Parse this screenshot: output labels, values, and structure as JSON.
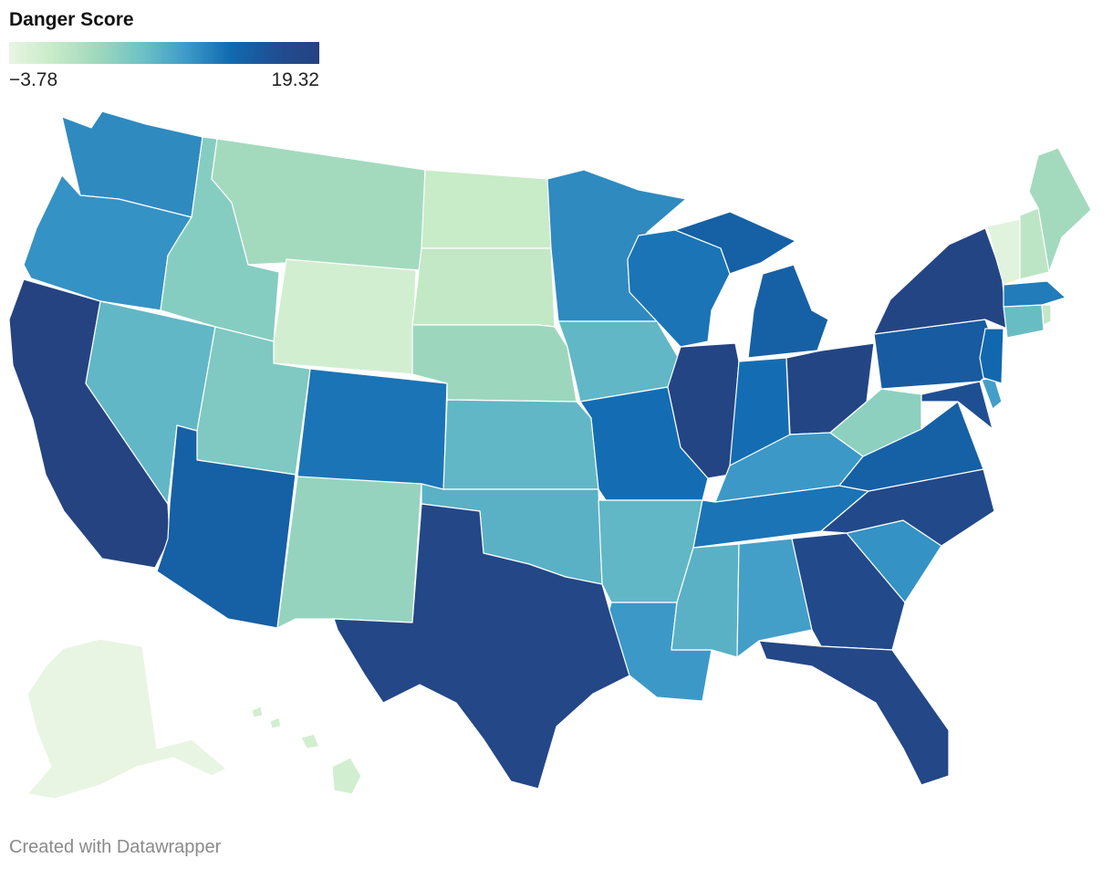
{
  "legend": {
    "title": "Danger Score",
    "min_label": "−3.78",
    "max_label": "19.32",
    "min": -3.78,
    "max": 19.32,
    "stops": [
      "#e8f5e2",
      "#c8ebc8",
      "#9fd8bd",
      "#6ec2c5",
      "#3d9ac8",
      "#116ab0",
      "#1f4f93",
      "#26427f"
    ]
  },
  "footer": {
    "credit": "Created with Datawrapper"
  },
  "chart_data": {
    "type": "choropleth",
    "title": "Danger Score",
    "value_range": [
      -3.78,
      19.32
    ],
    "regions": [
      {
        "code": "CA",
        "name": "California",
        "value": 19.0
      },
      {
        "code": "TX",
        "name": "Texas",
        "value": 18.0
      },
      {
        "code": "FL",
        "name": "Florida",
        "value": 18.0
      },
      {
        "code": "IL",
        "name": "Illinois",
        "value": 18.5
      },
      {
        "code": "OH",
        "name": "Ohio",
        "value": 18.5
      },
      {
        "code": "GA",
        "name": "Georgia",
        "value": 17.5
      },
      {
        "code": "NC",
        "name": "North Carolina",
        "value": 17.5
      },
      {
        "code": "NY",
        "name": "New York",
        "value": 18.5
      },
      {
        "code": "PA",
        "name": "Pennsylvania",
        "value": 14.5
      },
      {
        "code": "MI",
        "name": "Michigan",
        "value": 14.0
      },
      {
        "code": "AZ",
        "name": "Arizona",
        "value": 14.0
      },
      {
        "code": "VA",
        "name": "Virginia",
        "value": 14.0
      },
      {
        "code": "MD",
        "name": "Maryland",
        "value": 16.0
      },
      {
        "code": "IN",
        "name": "Indiana",
        "value": 12.5
      },
      {
        "code": "MO",
        "name": "Missouri",
        "value": 12.5
      },
      {
        "code": "NJ",
        "name": "New Jersey",
        "value": 13.0
      },
      {
        "code": "CO",
        "name": "Colorado",
        "value": 12.0
      },
      {
        "code": "WI",
        "name": "Wisconsin",
        "value": 12.0
      },
      {
        "code": "TN",
        "name": "Tennessee",
        "value": 12.0
      },
      {
        "code": "MA",
        "name": "Massachusetts",
        "value": 11.5
      },
      {
        "code": "WA",
        "name": "Washington",
        "value": 10.5
      },
      {
        "code": "OR",
        "name": "Oregon",
        "value": 10.0
      },
      {
        "code": "MN",
        "name": "Minnesota",
        "value": 10.5
      },
      {
        "code": "SC",
        "name": "South Carolina",
        "value": 10.0
      },
      {
        "code": "KY",
        "name": "Kentucky",
        "value": 9.5
      },
      {
        "code": "LA",
        "name": "Louisiana",
        "value": 9.5
      },
      {
        "code": "AL",
        "name": "Alabama",
        "value": 9.0
      },
      {
        "code": "DE",
        "name": "Delaware",
        "value": 9.0
      },
      {
        "code": "OK",
        "name": "Oklahoma",
        "value": 7.5
      },
      {
        "code": "MS",
        "name": "Mississippi",
        "value": 7.5
      },
      {
        "code": "NV",
        "name": "Nevada",
        "value": 7.0
      },
      {
        "code": "KS",
        "name": "Kansas",
        "value": 7.0
      },
      {
        "code": "IA",
        "name": "Iowa",
        "value": 7.0
      },
      {
        "code": "AR",
        "name": "Arkansas",
        "value": 7.0
      },
      {
        "code": "CT",
        "name": "Connecticut",
        "value": 6.5
      },
      {
        "code": "UT",
        "name": "Utah",
        "value": 5.0
      },
      {
        "code": "ID",
        "name": "Idaho",
        "value": 4.5
      },
      {
        "code": "NM",
        "name": "New Mexico",
        "value": 3.5
      },
      {
        "code": "WV",
        "name": "West Virginia",
        "value": 4.0
      },
      {
        "code": "NE",
        "name": "Nebraska",
        "value": 3.0
      },
      {
        "code": "MT",
        "name": "Montana",
        "value": 2.5
      },
      {
        "code": "ME",
        "name": "Maine",
        "value": 2.5
      },
      {
        "code": "NH",
        "name": "New Hampshire",
        "value": 0.5
      },
      {
        "code": "SD",
        "name": "South Dakota",
        "value": 0.0
      },
      {
        "code": "ND",
        "name": "North Dakota",
        "value": -0.5
      },
      {
        "code": "RI",
        "name": "Rhode Island",
        "value": 0.0
      },
      {
        "code": "WY",
        "name": "Wyoming",
        "value": -1.5
      },
      {
        "code": "HI",
        "name": "Hawaii",
        "value": -1.5
      },
      {
        "code": "VT",
        "name": "Vermont",
        "value": -3.0
      },
      {
        "code": "AK",
        "name": "Alaska",
        "value": -3.78
      }
    ]
  }
}
